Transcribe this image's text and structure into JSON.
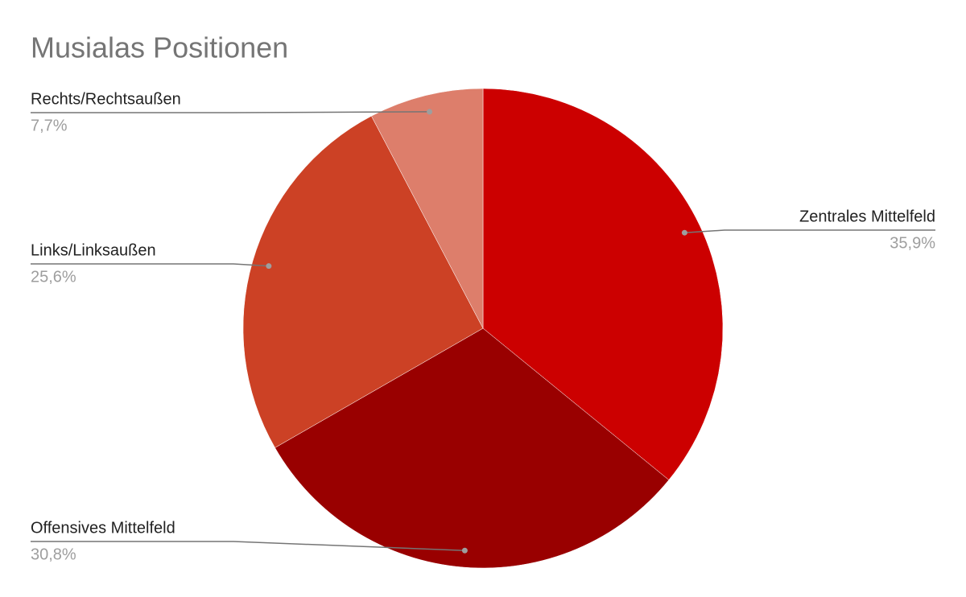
{
  "chart_data": {
    "type": "pie",
    "title": "Musialas Positionen",
    "categories": [
      "Zentrales Mittelfeld",
      "Offensives Mittelfeld",
      "Links/Linksaußen",
      "Rechts/Rechtsaußen"
    ],
    "values": [
      35.9,
      30.8,
      25.6,
      7.7
    ],
    "value_labels": [
      "35,9%",
      "30,8%",
      "25,6%",
      "7,7%"
    ],
    "colors": [
      "#cc0000",
      "#990000",
      "#cc4125",
      "#dd7e6b"
    ]
  }
}
